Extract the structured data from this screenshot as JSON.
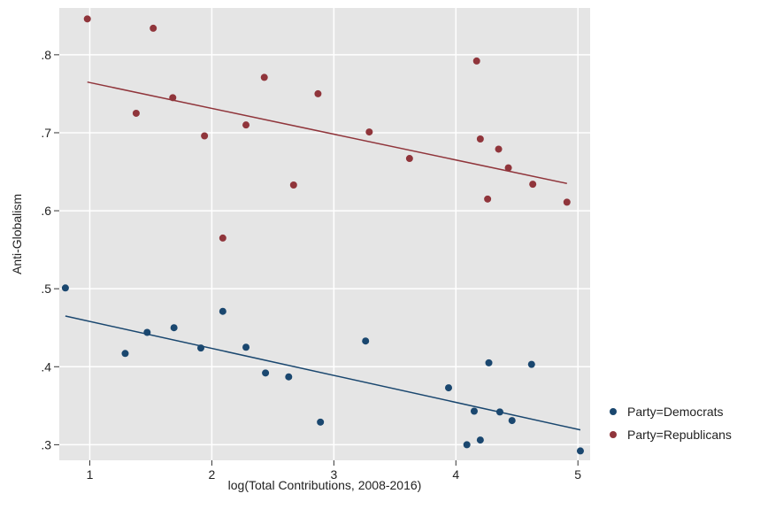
{
  "chart_data": {
    "type": "scatter",
    "title": "",
    "xlabel": "log(Total Contributions, 2008-2016)",
    "ylabel": "Anti-Globalism",
    "xlim": [
      0.75,
      5.1
    ],
    "ylim": [
      0.28,
      0.86
    ],
    "x_ticks": [
      1,
      2,
      3,
      4,
      5
    ],
    "x_tick_labels": [
      "1",
      "2",
      "3",
      "4",
      "5"
    ],
    "y_ticks": [
      0.3,
      0.4,
      0.5,
      0.6,
      0.7,
      0.8
    ],
    "y_tick_labels": [
      ".3",
      ".4",
      ".5",
      ".6",
      ".7",
      ".8"
    ],
    "grid": true,
    "legend_position": "right-bottom",
    "series": [
      {
        "name": "Party=Democrats",
        "color": "#1a476f",
        "points": [
          [
            0.8,
            0.501
          ],
          [
            1.29,
            0.417
          ],
          [
            1.47,
            0.444
          ],
          [
            1.69,
            0.45
          ],
          [
            1.91,
            0.424
          ],
          [
            2.09,
            0.471
          ],
          [
            2.28,
            0.425
          ],
          [
            2.44,
            0.392
          ],
          [
            2.63,
            0.387
          ],
          [
            2.89,
            0.329
          ],
          [
            3.26,
            0.433
          ],
          [
            3.94,
            0.373
          ],
          [
            4.09,
            0.3
          ],
          [
            4.15,
            0.343
          ],
          [
            4.2,
            0.306
          ],
          [
            4.27,
            0.405
          ],
          [
            4.36,
            0.342
          ],
          [
            4.46,
            0.331
          ],
          [
            4.62,
            0.403
          ],
          [
            5.02,
            0.292
          ]
        ],
        "fit": [
          [
            0.8,
            0.465
          ],
          [
            5.02,
            0.319
          ]
        ]
      },
      {
        "name": "Party=Republicans",
        "color": "#90353b",
        "points": [
          [
            0.98,
            0.846
          ],
          [
            1.38,
            0.725
          ],
          [
            1.52,
            0.834
          ],
          [
            1.68,
            0.745
          ],
          [
            1.94,
            0.696
          ],
          [
            2.09,
            0.565
          ],
          [
            2.28,
            0.71
          ],
          [
            2.43,
            0.771
          ],
          [
            2.67,
            0.633
          ],
          [
            2.87,
            0.75
          ],
          [
            3.29,
            0.701
          ],
          [
            3.62,
            0.667
          ],
          [
            4.17,
            0.792
          ],
          [
            4.2,
            0.692
          ],
          [
            4.26,
            0.615
          ],
          [
            4.35,
            0.679
          ],
          [
            4.43,
            0.655
          ],
          [
            4.63,
            0.634
          ],
          [
            4.91,
            0.611
          ]
        ],
        "fit": [
          [
            0.98,
            0.765
          ],
          [
            4.91,
            0.635
          ]
        ]
      }
    ]
  }
}
